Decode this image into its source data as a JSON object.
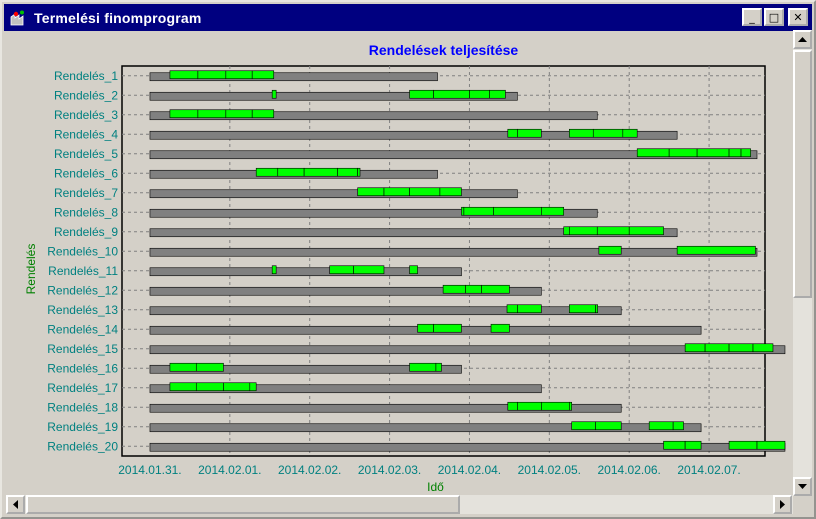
{
  "window": {
    "title": "Termelési finomprogram",
    "controls": {
      "minimize": "_",
      "maximize": "□",
      "close": "✕"
    },
    "icon": "factory-app-icon"
  },
  "colors": {
    "background": "#d4d0c8",
    "title_bar": "#000080",
    "chart_title": "#0000ff",
    "label_teal": "#008080",
    "axis_title_green": "#008000",
    "order_bar": "#808080",
    "operation_bar": "#00ff00",
    "grid": "#808080"
  },
  "chart_data": {
    "type": "gantt",
    "title": "Rendelések teljesítése",
    "xlabel": "Idő",
    "ylabel": "Rendelés",
    "grid": true,
    "x_ticks": [
      "2014.01.31.",
      "2014.02.01.",
      "2014.02.02.",
      "2014.02.03.",
      "2014.02.04.",
      "2014.02.05.",
      "2014.02.06.",
      "2014.02.07."
    ],
    "x_range_days": [
      -0.35,
      7.7
    ],
    "x_range_note": "day offsets relative to 2014.01.31.",
    "rows": [
      {
        "label": "Rendelés_1",
        "order": [
          0.0,
          3.6
        ],
        "ops": [
          [
            0.25,
            0.6
          ],
          [
            0.6,
            0.95
          ],
          [
            0.95,
            1.28
          ],
          [
            1.28,
            1.55
          ]
        ]
      },
      {
        "label": "Rendelés_2",
        "order": [
          0.0,
          4.6
        ],
        "ops": [
          [
            1.53,
            1.58
          ],
          [
            3.25,
            3.55
          ],
          [
            3.55,
            4.0
          ],
          [
            4.0,
            4.25
          ],
          [
            4.25,
            4.45
          ]
        ]
      },
      {
        "label": "Rendelés_3",
        "order": [
          0.0,
          5.6
        ],
        "ops": [
          [
            0.25,
            0.6
          ],
          [
            0.6,
            0.95
          ],
          [
            0.95,
            1.28
          ],
          [
            1.28,
            1.55
          ]
        ]
      },
      {
        "label": "Rendelés_4",
        "order": [
          0.0,
          6.6
        ],
        "ops": [
          [
            4.48,
            4.6
          ],
          [
            4.6,
            4.9
          ],
          [
            5.25,
            5.55
          ],
          [
            5.55,
            5.92
          ],
          [
            5.92,
            6.1
          ]
        ]
      },
      {
        "label": "Rendelés_5",
        "order": [
          0.0,
          7.6
        ],
        "ops": [
          [
            6.1,
            6.5
          ],
          [
            6.5,
            6.85
          ],
          [
            6.85,
            7.25
          ],
          [
            7.25,
            7.4
          ],
          [
            7.4,
            7.52
          ]
        ]
      },
      {
        "label": "Rendelés_6",
        "order": [
          0.0,
          3.6
        ],
        "ops": [
          [
            1.33,
            1.6
          ],
          [
            1.6,
            1.93
          ],
          [
            1.93,
            2.35
          ],
          [
            2.35,
            2.6
          ],
          [
            2.6,
            2.63
          ]
        ]
      },
      {
        "label": "Rendelés_7",
        "order": [
          0.0,
          4.6
        ],
        "ops": [
          [
            2.6,
            2.93
          ],
          [
            2.93,
            3.25
          ],
          [
            3.25,
            3.63
          ],
          [
            3.63,
            3.9
          ]
        ]
      },
      {
        "label": "Rendelés_8",
        "order": [
          0.0,
          5.6
        ],
        "ops": [
          [
            3.9,
            3.93
          ],
          [
            3.93,
            4.3
          ],
          [
            4.3,
            4.9
          ],
          [
            4.9,
            5.18
          ]
        ]
      },
      {
        "label": "Rendelés_9",
        "order": [
          0.0,
          6.6
        ],
        "ops": [
          [
            5.18,
            5.25
          ],
          [
            5.25,
            5.6
          ],
          [
            5.6,
            6.0
          ],
          [
            6.0,
            6.43
          ]
        ]
      },
      {
        "label": "Rendelés_10",
        "order": [
          0.0,
          7.6
        ],
        "ops": [
          [
            5.62,
            5.9
          ],
          [
            6.6,
            7.58
          ]
        ]
      },
      {
        "label": "Rendelés_11",
        "order": [
          0.0,
          3.9
        ],
        "ops": [
          [
            1.53,
            1.58
          ],
          [
            2.25,
            2.55
          ],
          [
            2.55,
            2.93
          ],
          [
            3.25,
            3.35
          ]
        ]
      },
      {
        "label": "Rendelés_12",
        "order": [
          0.0,
          4.9
        ],
        "ops": [
          [
            3.67,
            3.95
          ],
          [
            3.95,
            4.15
          ],
          [
            4.15,
            4.5
          ]
        ]
      },
      {
        "label": "Rendelés_13",
        "order": [
          0.0,
          5.9
        ],
        "ops": [
          [
            4.47,
            4.6
          ],
          [
            4.6,
            4.9
          ],
          [
            5.25,
            5.58
          ],
          [
            5.58,
            5.6
          ]
        ]
      },
      {
        "label": "Rendelés_14",
        "order": [
          0.0,
          6.9
        ],
        "ops": [
          [
            3.35,
            3.55
          ],
          [
            3.55,
            3.9
          ],
          [
            4.27,
            4.5
          ]
        ]
      },
      {
        "label": "Rendelés_15",
        "order": [
          0.0,
          7.95
        ],
        "ops": [
          [
            6.7,
            6.95
          ],
          [
            6.95,
            7.25
          ],
          [
            7.25,
            7.55
          ],
          [
            7.55,
            7.8
          ]
        ]
      },
      {
        "label": "Rendelés_16",
        "order": [
          0.0,
          3.9
        ],
        "ops": [
          [
            0.25,
            0.58
          ],
          [
            0.58,
            0.92
          ],
          [
            3.25,
            3.58
          ],
          [
            3.58,
            3.65
          ]
        ]
      },
      {
        "label": "Rendelés_17",
        "order": [
          0.0,
          4.9
        ],
        "ops": [
          [
            0.25,
            0.58
          ],
          [
            0.58,
            0.92
          ],
          [
            0.92,
            1.25
          ],
          [
            1.25,
            1.33
          ]
        ]
      },
      {
        "label": "Rendelés_18",
        "order": [
          0.0,
          5.9
        ],
        "ops": [
          [
            4.48,
            4.6
          ],
          [
            4.6,
            4.9
          ],
          [
            4.9,
            5.25
          ],
          [
            5.25,
            5.28
          ]
        ]
      },
      {
        "label": "Rendelés_19",
        "order": [
          0.0,
          6.9
        ],
        "ops": [
          [
            5.28,
            5.58
          ],
          [
            5.58,
            5.9
          ],
          [
            6.25,
            6.55
          ],
          [
            6.55,
            6.68
          ]
        ]
      },
      {
        "label": "Rendelés_20",
        "order": [
          0.0,
          7.95
        ],
        "ops": [
          [
            6.43,
            6.7
          ],
          [
            6.7,
            6.9
          ],
          [
            7.25,
            7.6
          ],
          [
            7.6,
            7.95
          ]
        ]
      }
    ]
  }
}
